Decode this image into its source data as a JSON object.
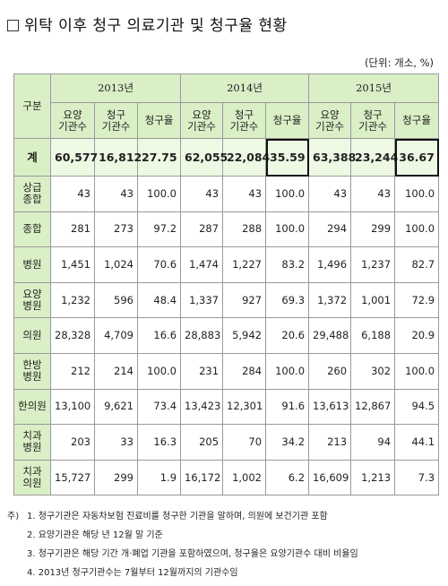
{
  "title": "위탁 이후 청구 의료기관 및 청구율 현황",
  "unit": "(단위: 개소, %)",
  "table": {
    "category_header": "구분",
    "years": [
      "2013년",
      "2014년",
      "2015년"
    ],
    "sub_headers": [
      "요양\n기관수",
      "청구\n기관수",
      "청구율"
    ],
    "total": {
      "label": "계",
      "values": [
        "60,577",
        "16,812",
        "27.75",
        "62,055",
        "22,084",
        "35.59",
        "63,388",
        "23,244",
        "36.67"
      ]
    },
    "rows": [
      {
        "label": "상급\n종합",
        "values": [
          "43",
          "43",
          "100.0",
          "43",
          "43",
          "100.0",
          "43",
          "43",
          "100.0"
        ]
      },
      {
        "label": "종합",
        "values": [
          "281",
          "273",
          "97.2",
          "287",
          "288",
          "100.0",
          "294",
          "299",
          "100.0"
        ]
      },
      {
        "label": "병원",
        "values": [
          "1,451",
          "1,024",
          "70.6",
          "1,474",
          "1,227",
          "83.2",
          "1,496",
          "1,237",
          "82.7"
        ]
      },
      {
        "label": "요양\n병원",
        "values": [
          "1,232",
          "596",
          "48.4",
          "1,337",
          "927",
          "69.3",
          "1,372",
          "1,001",
          "72.9"
        ]
      },
      {
        "label": "의원",
        "values": [
          "28,328",
          "4,709",
          "16.6",
          "28,883",
          "5,942",
          "20.6",
          "29,488",
          "6,188",
          "20.9"
        ]
      },
      {
        "label": "한방\n병원",
        "values": [
          "212",
          "214",
          "100.0",
          "231",
          "284",
          "100.0",
          "260",
          "302",
          "100.0"
        ]
      },
      {
        "label": "한의원",
        "values": [
          "13,100",
          "9,621",
          "73.4",
          "13,423",
          "12,301",
          "91.6",
          "13,613",
          "12,867",
          "94.5"
        ]
      },
      {
        "label": "치과\n병원",
        "values": [
          "203",
          "33",
          "16.3",
          "205",
          "70",
          "34.2",
          "213",
          "94",
          "44.1"
        ]
      },
      {
        "label": "치과\n의원",
        "values": [
          "15,727",
          "299",
          "1.9",
          "16,172",
          "1,002",
          "6.2",
          "16,609",
          "1,213",
          "7.3"
        ]
      }
    ]
  },
  "notes": {
    "marker": "주)",
    "items": [
      "1. 청구기관은 자동차보험 진료비를 청구한 기관을 말하며, 의원에 보건기관 포함",
      "2. 요양기관은 해당 년 12월 말 기준",
      "3. 청구기관은 해당 기간 개·폐업 기관을 포함하였으며, 청구율은 요양기관수 대비 비율임",
      "4. 2013년 청구기관수는 7월부터 12월까지의 기관수임"
    ]
  },
  "colors": {
    "header_bg": "#d9efc6",
    "total_bg": "#eef9e4",
    "border": "#9a9a9a"
  }
}
